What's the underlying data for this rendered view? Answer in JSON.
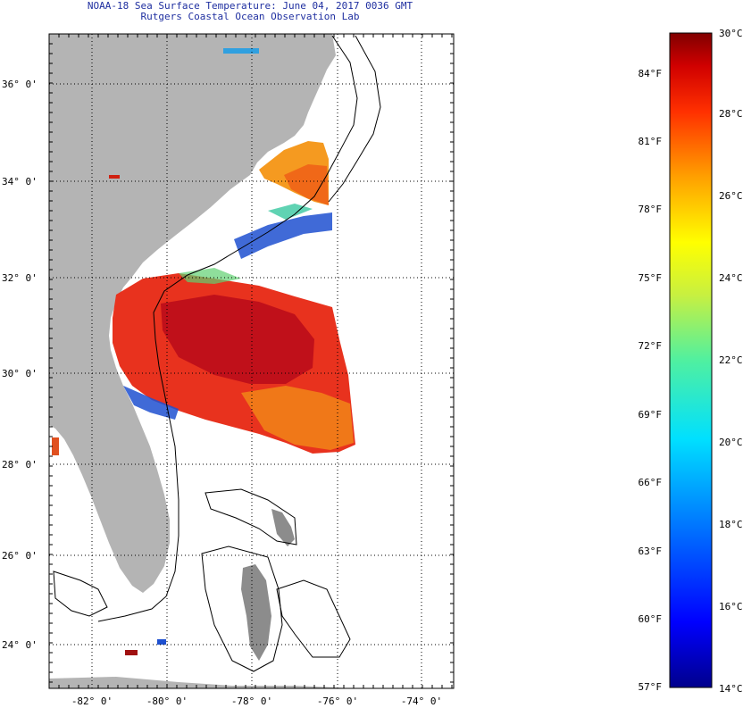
{
  "title_line1": "NOAA-18 Sea Surface Temperature:  June 04, 2017 0036 GMT",
  "title_line2": "Rutgers Coastal Ocean Observation Lab",
  "lat_labels": [
    "36° 0'",
    "34° 0'",
    "32° 0'",
    "30° 0'",
    "28° 0'",
    "26° 0'",
    "24° 0'"
  ],
  "lon_labels": [
    "-82° 0'",
    "-80° 0'",
    "-78° 0'",
    "-76° 0'",
    "-74° 0'"
  ],
  "colorbar": {
    "fahrenheit": [
      "84°F",
      "81°F",
      "78°F",
      "75°F",
      "72°F",
      "69°F",
      "66°F",
      "63°F",
      "60°F",
      "57°F"
    ],
    "celsius": [
      "30°C",
      "28°C",
      "26°C",
      "24°C",
      "22°C",
      "20°C",
      "18°C",
      "16°C",
      "14°C"
    ]
  },
  "colors": {
    "land": "#b4b4b4",
    "title": "#1f2fa0",
    "warm": "#e8321e",
    "hot": "#c0101a",
    "orange": "#f07818",
    "cool": "#1e50d0"
  }
}
